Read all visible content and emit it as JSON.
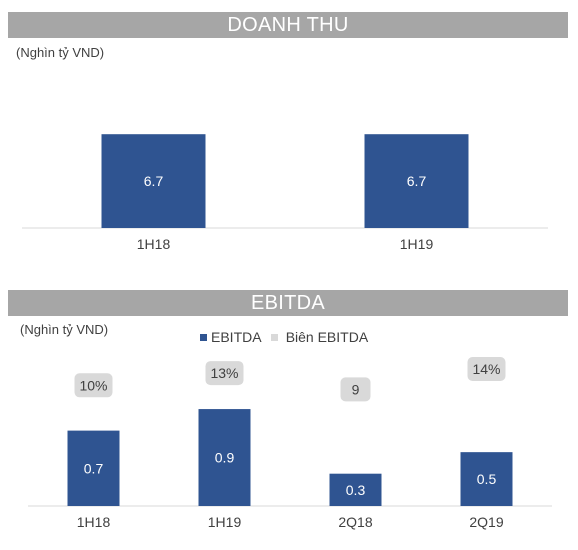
{
  "colors": {
    "bar": "#2f5491",
    "bubble": "#d9d9d9",
    "banner": "#a6a6a6"
  },
  "chart_data": [
    {
      "type": "bar",
      "title": "DOANH THU",
      "unit": "(Nghìn tỷ VND)",
      "categories": [
        "1H18",
        "1H19"
      ],
      "values": [
        6.7,
        6.7
      ],
      "data_labels": [
        "6.7",
        "6.7"
      ],
      "ylim": [
        0,
        10
      ],
      "grid": false
    },
    {
      "type": "bar",
      "title": "EBITDA",
      "unit": "(Nghìn tỷ VND)",
      "legend": [
        "EBITDA",
        "Biên EBITDA"
      ],
      "legend_position": "top",
      "categories": [
        "1H18",
        "1H19",
        "2Q18",
        "2Q19"
      ],
      "series": [
        {
          "name": "EBITDA",
          "values": [
            0.7,
            0.9,
            0.3,
            0.5
          ],
          "labels": [
            "0.7",
            "0.9",
            "0.3",
            "0.5"
          ]
        },
        {
          "name": "Biên EBITDA",
          "values": [
            10,
            13,
            9,
            14
          ],
          "labels": [
            "10%",
            "13%",
            "9",
            "14%"
          ]
        }
      ],
      "ylim": [
        0,
        1.3
      ],
      "grid": false
    }
  ]
}
